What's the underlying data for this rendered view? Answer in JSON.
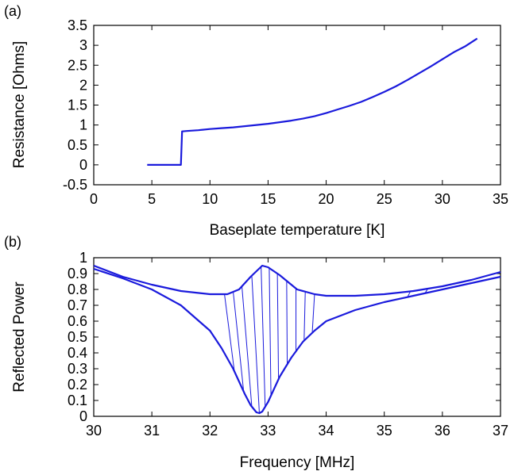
{
  "chart_data": [
    {
      "type": "line",
      "panel_label": "(a)",
      "xlabel": "Baseplate temperature [K]",
      "ylabel": "Resistance [Ohms]",
      "xlim": [
        0,
        35
      ],
      "ylim": [
        -0.5,
        3.5
      ],
      "xticks": [
        "0",
        "5",
        "10",
        "15",
        "20",
        "25",
        "30",
        "35"
      ],
      "yticks": [
        "-0.5",
        "0",
        "0.5",
        "1",
        "1.5",
        "2",
        "2.5",
        "3",
        "3.5"
      ],
      "grid": false,
      "color": "#1a1adc",
      "series": [
        {
          "x": [
            4.6,
            5.5,
            6.5,
            7.5,
            7.6,
            8.0,
            9.0,
            10.0,
            11.0,
            12.0,
            13.0,
            14.0,
            15.0,
            16.0,
            17.0,
            18.0,
            19.0,
            20.0,
            21.0,
            22.0,
            23.0,
            24.0,
            25.0,
            26.0,
            27.0,
            28.0,
            29.0,
            30.0,
            31.0,
            32.0,
            33.0
          ],
          "y": [
            0.0,
            0.0,
            0.0,
            0.0,
            0.84,
            0.85,
            0.87,
            0.9,
            0.92,
            0.94,
            0.97,
            1.0,
            1.03,
            1.07,
            1.11,
            1.16,
            1.22,
            1.3,
            1.39,
            1.48,
            1.58,
            1.7,
            1.83,
            1.97,
            2.13,
            2.3,
            2.47,
            2.65,
            2.83,
            2.98,
            3.17
          ]
        }
      ]
    },
    {
      "type": "line",
      "panel_label": "(b)",
      "xlabel": "Frequency [MHz]",
      "ylabel": "Reflected Power",
      "xlim": [
        30,
        37
      ],
      "ylim": [
        0,
        1
      ],
      "xticks": [
        "30",
        "31",
        "32",
        "33",
        "34",
        "35",
        "36",
        "37"
      ],
      "yticks": [
        "0",
        "0.1",
        "0.2",
        "0.3",
        "0.4",
        "0.5",
        "0.6",
        "0.7",
        "0.8",
        "0.9",
        "1"
      ],
      "grid": false,
      "color": "#1a1adc",
      "series": [
        {
          "x": [
            30.0,
            30.5,
            31.0,
            31.5,
            32.0,
            32.2,
            32.4,
            32.6,
            32.7,
            32.8,
            32.85,
            32.9,
            33.0,
            33.1,
            33.2,
            33.4,
            33.6,
            33.8,
            34.0,
            34.5,
            35.0,
            35.5,
            36.0,
            36.5,
            37.0
          ],
          "y": [
            0.93,
            0.87,
            0.8,
            0.7,
            0.54,
            0.43,
            0.3,
            0.14,
            0.07,
            0.025,
            0.02,
            0.03,
            0.09,
            0.17,
            0.25,
            0.37,
            0.47,
            0.54,
            0.6,
            0.67,
            0.72,
            0.76,
            0.8,
            0.84,
            0.88
          ]
        },
        {
          "x": [
            30.0,
            30.5,
            31.0,
            31.5,
            32.0,
            32.3,
            32.5,
            32.7,
            32.9,
            33.0,
            33.2,
            33.5,
            33.8,
            34.0,
            34.5,
            35.0,
            35.5,
            36.0,
            36.5,
            37.0
          ],
          "y": [
            0.95,
            0.88,
            0.83,
            0.79,
            0.77,
            0.77,
            0.8,
            0.88,
            0.95,
            0.94,
            0.89,
            0.8,
            0.77,
            0.76,
            0.76,
            0.77,
            0.79,
            0.82,
            0.86,
            0.91
          ]
        }
      ]
    }
  ]
}
